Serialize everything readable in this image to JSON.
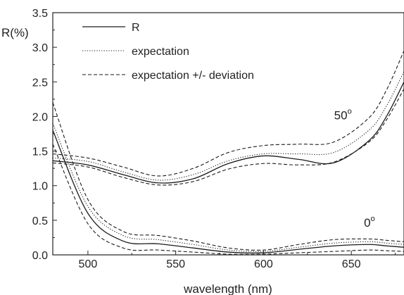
{
  "chart_data": {
    "type": "line",
    "xlabel": "wavelength (nm)",
    "ylabel": "R(%)",
    "xlim": [
      480,
      680
    ],
    "ylim": [
      0.0,
      3.5
    ],
    "x_ticks": [
      500,
      550,
      600,
      650
    ],
    "y_ticks": [
      "0.0",
      "0.5",
      "1.0",
      "1.5",
      "2.0",
      "2.5",
      "3.0",
      "3.5"
    ],
    "grid": false,
    "legend_position": "top-left",
    "legend": [
      {
        "label": "R",
        "style": "solid"
      },
      {
        "label": "expectation",
        "style": "dotted"
      },
      {
        "label": "expectation +/- deviation",
        "style": "dashed"
      }
    ],
    "annotations": [
      {
        "text": "50",
        "sup": "o",
        "near": "upper curves",
        "x": 645,
        "y": 2.02
      },
      {
        "text": "0",
        "sup": "o",
        "near": "lower curves",
        "x": 662,
        "y": 0.47
      }
    ],
    "x": [
      480,
      500,
      520,
      540,
      560,
      580,
      600,
      620,
      640,
      660,
      670,
      680
    ],
    "groups": [
      {
        "angle": "50°",
        "series": [
          {
            "role": "R",
            "style": "solid",
            "values": [
              1.36,
              1.3,
              1.16,
              1.04,
              1.1,
              1.32,
              1.43,
              1.38,
              1.33,
              1.65,
              2.0,
              2.5
            ]
          },
          {
            "role": "expectation",
            "style": "dotted",
            "values": [
              1.4,
              1.35,
              1.2,
              1.08,
              1.16,
              1.36,
              1.46,
              1.46,
              1.48,
              1.8,
              2.15,
              2.65
            ]
          },
          {
            "role": "expectation +",
            "style": "dashed",
            "values": [
              1.46,
              1.4,
              1.27,
              1.14,
              1.25,
              1.48,
              1.58,
              1.6,
              1.63,
              1.98,
              2.38,
              2.95
            ]
          },
          {
            "role": "expectation -",
            "style": "dashed",
            "values": [
              1.33,
              1.27,
              1.12,
              1.01,
              1.06,
              1.24,
              1.32,
              1.3,
              1.34,
              1.63,
              1.95,
              2.4
            ]
          }
        ]
      },
      {
        "angle": "0°",
        "series": [
          {
            "role": "R",
            "style": "solid",
            "values": [
              1.8,
              0.6,
              0.2,
              0.16,
              0.1,
              0.04,
              0.03,
              0.08,
              0.13,
              0.15,
              0.13,
              0.11
            ]
          },
          {
            "role": "expectation",
            "style": "dotted",
            "values": [
              1.9,
              0.7,
              0.28,
              0.22,
              0.15,
              0.07,
              0.05,
              0.11,
              0.17,
              0.19,
              0.17,
              0.15
            ]
          },
          {
            "role": "expectation +",
            "style": "dashed",
            "values": [
              2.2,
              0.8,
              0.34,
              0.28,
              0.2,
              0.1,
              0.07,
              0.15,
              0.22,
              0.23,
              0.21,
              0.19
            ]
          },
          {
            "role": "expectation -",
            "style": "dashed",
            "values": [
              1.6,
              0.45,
              0.1,
              0.07,
              0.04,
              0.01,
              0.01,
              0.03,
              0.05,
              0.07,
              0.06,
              0.05
            ]
          }
        ]
      }
    ]
  }
}
